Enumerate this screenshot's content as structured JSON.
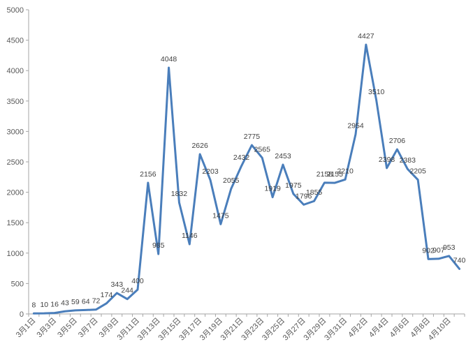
{
  "chart_data": {
    "type": "line",
    "title": "",
    "xlabel": "",
    "ylabel": "",
    "ylim": [
      0,
      5000
    ],
    "yticks": [
      0,
      500,
      1000,
      1500,
      2000,
      2500,
      3000,
      3500,
      4000,
      4500,
      5000
    ],
    "grid": false,
    "legend": "none",
    "line_color": "#4a7ebb",
    "categories": [
      "3月1日",
      "3月2日",
      "3月3日",
      "3月4日",
      "3月5日",
      "3月6日",
      "3月7日",
      "3月8日",
      "3月9日",
      "3月10日",
      "3月11日",
      "3月12日",
      "3月13日",
      "3月14日",
      "3月15日",
      "3月16日",
      "3月17日",
      "3月18日",
      "3月19日",
      "3月20日",
      "3月21日",
      "3月22日",
      "3月23日",
      "3月24日",
      "3月25日",
      "3月26日",
      "3月27日",
      "3月28日",
      "3月29日",
      "3月30日",
      "3月31日",
      "4月1日",
      "4月2日",
      "4月3日",
      "4月4日",
      "4月5日",
      "4月6日",
      "4月7日",
      "4月8日",
      "4月9日",
      "4月10日",
      "4月11日"
    ],
    "visible_tick_labels": [
      "3月1日",
      "3月3日",
      "3月5日",
      "3月7日",
      "3月9日",
      "3月11日",
      "3月13日",
      "3月15日",
      "3月17日",
      "3月19日",
      "3月21日",
      "3月23日",
      "3月25日",
      "3月27日",
      "3月29日",
      "3月31日",
      "4月2日",
      "4月4日",
      "4月6日",
      "4月8日",
      "4月10日"
    ],
    "values": [
      8,
      10,
      16,
      43,
      59,
      64,
      72,
      174,
      343,
      244,
      400,
      2156,
      985,
      4048,
      1832,
      1146,
      2626,
      2203,
      1475,
      2055,
      2432,
      2775,
      2565,
      1919,
      2453,
      1975,
      1796,
      1855,
      2158,
      2155,
      2210,
      2954,
      4427,
      3510,
      2398,
      2706,
      2383,
      2205,
      902,
      907,
      953,
      740
    ]
  }
}
